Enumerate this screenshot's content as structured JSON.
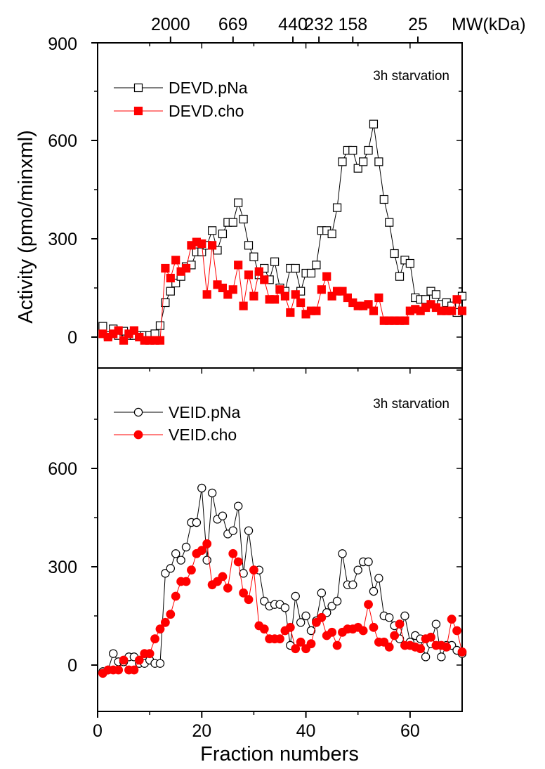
{
  "colors": {
    "black": "#000000",
    "red": "#ff0000"
  },
  "chart_data": {
    "type": "scatter",
    "x_axis": {
      "label": "Fraction numbers",
      "range": [
        0,
        70
      ],
      "ticks": [
        0,
        20,
        40,
        60
      ],
      "tick_labels": [
        "0",
        "20",
        "40",
        "60"
      ]
    },
    "y_axis": {
      "label": "Activity (pmo/minxml)",
      "ticks": [
        0,
        300,
        600
      ],
      "tick_labels": [
        "0",
        "300",
        "600"
      ]
    },
    "top_axis": {
      "label": "MW(kDa)",
      "markers": [
        {
          "label": "2000",
          "fraction": 14
        },
        {
          "label": "669",
          "fraction": 26
        },
        {
          "label": "440",
          "fraction": 37.5
        },
        {
          "label": "232",
          "fraction": 42.5
        },
        {
          "label": "158",
          "fraction": 49
        },
        {
          "label": "25",
          "fraction": 61.5
        }
      ]
    },
    "panels": [
      {
        "id": "top",
        "annotation": "3h starvation",
        "y_top_label": "900",
        "ylim": [
          -90,
          900
        ],
        "series": [
          {
            "name": "DEVD.pNa",
            "color": "#000000",
            "marker": "square-open",
            "x": [
              1,
              2,
              3,
              4,
              5,
              6,
              7,
              8,
              9,
              10,
              11,
              12,
              13,
              14,
              15,
              16,
              17,
              18,
              19,
              20,
              21,
              22,
              23,
              24,
              25,
              26,
              27,
              28,
              29,
              30,
              31,
              32,
              33,
              34,
              35,
              36,
              37,
              38,
              39,
              40,
              41,
              42,
              43,
              44,
              45,
              46,
              47,
              48,
              49,
              50,
              51,
              52,
              53,
              54,
              55,
              56,
              57,
              58,
              59,
              60,
              61,
              62,
              63,
              64,
              65,
              66,
              67,
              68,
              69,
              70
            ],
            "y": [
              33,
              5,
              25,
              5,
              18,
              5,
              5,
              5,
              5,
              5,
              10,
              35,
              105,
              140,
              165,
              185,
              215,
              220,
              260,
              260,
              280,
              325,
              265,
              315,
              350,
              350,
              410,
              360,
              280,
              245,
              190,
              210,
              175,
              230,
              150,
              140,
              210,
              210,
              140,
              195,
              195,
              220,
              325,
              325,
              315,
              395,
              535,
              570,
              570,
              515,
              535,
              570,
              650,
              535,
              420,
              350,
              255,
              185,
              235,
              225,
              120,
              115,
              115,
              140,
              130,
              100,
              105,
              95,
              75,
              125
            ]
          },
          {
            "name": "DEVD.cho",
            "color": "#ff0000",
            "marker": "square-filled",
            "x": [
              1,
              2,
              3,
              4,
              5,
              6,
              7,
              8,
              9,
              10,
              11,
              12,
              13,
              14,
              15,
              16,
              17,
              18,
              19,
              20,
              21,
              22,
              23,
              24,
              25,
              26,
              27,
              28,
              29,
              30,
              31,
              32,
              33,
              34,
              35,
              36,
              37,
              38,
              39,
              40,
              41,
              42,
              43,
              44,
              45,
              46,
              47,
              48,
              49,
              50,
              51,
              52,
              53,
              54,
              55,
              56,
              57,
              58,
              59,
              60,
              61,
              62,
              63,
              64,
              65,
              66,
              67,
              68,
              69,
              70
            ],
            "y": [
              10,
              0,
              10,
              20,
              -10,
              10,
              20,
              0,
              -10,
              -10,
              -10,
              -10,
              210,
              180,
              235,
              200,
              210,
              280,
              290,
              285,
              130,
              280,
              160,
              150,
              130,
              145,
              220,
              95,
              190,
              125,
              200,
              175,
              115,
              115,
              145,
              125,
              75,
              130,
              105,
              70,
              80,
              80,
              145,
              185,
              125,
              140,
              140,
              120,
              105,
              95,
              95,
              100,
              80,
              120,
              50,
              50,
              50,
              50,
              50,
              80,
              85,
              80,
              90,
              100,
              90,
              80,
              80,
              80,
              115,
              80
            ]
          }
        ]
      },
      {
        "id": "bottom",
        "annotation": "3h starvation",
        "ylim": [
          -90,
          900
        ],
        "series": [
          {
            "name": "VEID.pNa",
            "color": "#000000",
            "marker": "circle-open",
            "x": [
              1,
              2,
              3,
              4,
              5,
              6,
              7,
              8,
              9,
              10,
              11,
              12,
              13,
              14,
              15,
              16,
              17,
              18,
              19,
              20,
              21,
              22,
              23,
              24,
              25,
              26,
              27,
              28,
              29,
              30,
              31,
              32,
              33,
              34,
              35,
              36,
              37,
              38,
              39,
              40,
              41,
              42,
              43,
              44,
              45,
              46,
              47,
              48,
              49,
              50,
              51,
              52,
              53,
              54,
              55,
              56,
              57,
              58,
              59,
              60,
              61,
              62,
              63,
              64,
              65,
              66,
              67,
              68,
              69,
              70
            ],
            "y": [
              -20,
              -15,
              35,
              10,
              10,
              25,
              25,
              5,
              5,
              15,
              5,
              5,
              280,
              295,
              340,
              320,
              360,
              435,
              435,
              540,
              320,
              525,
              445,
              455,
              400,
              410,
              485,
              280,
              410,
              290,
              290,
              195,
              180,
              185,
              185,
              175,
              60,
              210,
              130,
              150,
              105,
              135,
              220,
              160,
              180,
              195,
              340,
              245,
              245,
              290,
              315,
              315,
              225,
              265,
              150,
              145,
              120,
              80,
              150,
              70,
              90,
              80,
              25,
              65,
              125,
              25,
              60,
              60,
              45,
              35
            ]
          },
          {
            "name": "VEID.cho",
            "color": "#ff0000",
            "marker": "circle-filled",
            "x": [
              1,
              2,
              3,
              4,
              5,
              6,
              7,
              8,
              9,
              10,
              11,
              12,
              13,
              14,
              15,
              16,
              17,
              18,
              19,
              20,
              21,
              22,
              23,
              24,
              25,
              26,
              27,
              28,
              29,
              30,
              31,
              32,
              33,
              34,
              35,
              36,
              37,
              38,
              39,
              40,
              41,
              42,
              43,
              44,
              45,
              46,
              47,
              48,
              49,
              50,
              51,
              52,
              53,
              54,
              55,
              56,
              57,
              58,
              59,
              60,
              61,
              62,
              63,
              64,
              65,
              66,
              67,
              68,
              69,
              70
            ],
            "y": [
              -25,
              -15,
              -15,
              -15,
              15,
              -15,
              -15,
              15,
              35,
              35,
              80,
              110,
              130,
              155,
              210,
              255,
              255,
              290,
              340,
              350,
              370,
              245,
              255,
              270,
              235,
              340,
              315,
              220,
              200,
              290,
              120,
              110,
              80,
              80,
              80,
              105,
              115,
              50,
              70,
              50,
              65,
              130,
              145,
              90,
              100,
              60,
              100,
              110,
              110,
              115,
              105,
              185,
              115,
              70,
              70,
              55,
              90,
              125,
              60,
              60,
              55,
              50,
              80,
              85,
              60,
              60,
              55,
              140,
              105,
              40
            ]
          }
        ]
      }
    ]
  }
}
